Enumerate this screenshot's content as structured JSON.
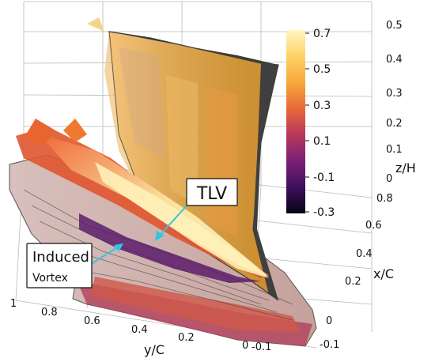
{
  "figure": {
    "colorbar": {
      "ticks": [
        "0.7",
        "0.5",
        "0.3",
        "0.1",
        "-0.1",
        "-0.3"
      ],
      "colors": [
        "#fff7c4",
        "#fdd267",
        "#f7a63a",
        "#e8683b",
        "#b8385a",
        "#7c2176",
        "#3d0f5c",
        "#060412"
      ]
    },
    "axes": {
      "z": {
        "title": "z/H",
        "ticks": [
          "0.5",
          "0.4",
          "0.3",
          "0.2",
          "0.1",
          "0"
        ]
      },
      "x": {
        "title": "x/C",
        "ticks": [
          "0.8",
          "0.6",
          "0.4",
          "0.2",
          "0",
          "-0.1"
        ]
      },
      "y": {
        "title": "y/C",
        "ticks": [
          "1",
          "0.8",
          "0.6",
          "0.4",
          "0.2",
          "0",
          "-0.1"
        ]
      }
    },
    "annotations": {
      "tlv": "TLV",
      "induced_line1": "Induced",
      "induced_line2": "Vortex"
    },
    "colors": {
      "arrow": "#33c6e0",
      "blade_dark": "#3b3b3b",
      "blade_face": "#e0a63c",
      "floor": "#c9a9a4"
    }
  }
}
